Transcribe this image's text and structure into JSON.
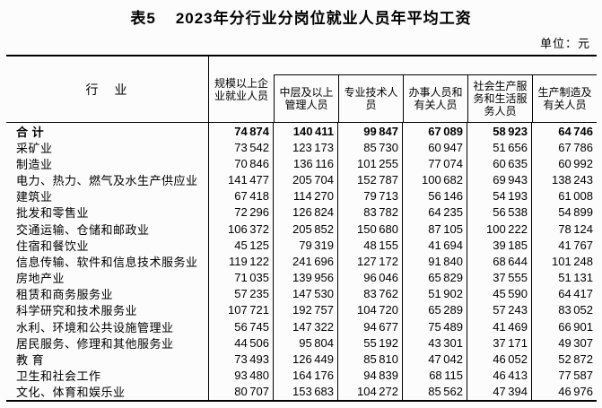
{
  "title": {
    "prefix": "表5",
    "text": "2023年分行业分岗位就业人员年平均工资"
  },
  "unit_label": "单位：元",
  "table": {
    "industry_header": "行　业",
    "columns": [
      "规模以上企业就业人员",
      "中层及以上管理人员",
      "专业技术人员",
      "办事人员和有关人员",
      "社会生产服务和生活服务人员",
      "生产制造及有关人员"
    ],
    "rows": [
      {
        "industry": "合 计",
        "bold": true,
        "values": [
          74874,
          140411,
          99847,
          67089,
          58923,
          64746
        ]
      },
      {
        "industry": "采矿业",
        "values": [
          73542,
          123173,
          85730,
          60947,
          51656,
          67786
        ]
      },
      {
        "industry": "制造业",
        "values": [
          70846,
          136116,
          101255,
          77074,
          60635,
          60992
        ]
      },
      {
        "industry": "电力、热力、燃气及水生产供应业",
        "values": [
          141477,
          205704,
          152787,
          100682,
          69943,
          138243
        ]
      },
      {
        "industry": "建筑业",
        "values": [
          67418,
          114270,
          79713,
          56146,
          54193,
          61008
        ]
      },
      {
        "industry": "批发和零售业",
        "values": [
          72296,
          126824,
          83782,
          64235,
          56538,
          54899
        ]
      },
      {
        "industry": "交通运输、仓储和邮政业",
        "values": [
          106372,
          205852,
          150680,
          87105,
          100222,
          78124
        ]
      },
      {
        "industry": "住宿和餐饮业",
        "values": [
          45125,
          79319,
          48155,
          41694,
          39185,
          41767
        ]
      },
      {
        "industry": "信息传输、软件和信息技术服务业",
        "values": [
          119122,
          241696,
          127172,
          91840,
          68644,
          101248
        ]
      },
      {
        "industry": "房地产业",
        "values": [
          71035,
          139956,
          96046,
          65829,
          37555,
          51131
        ]
      },
      {
        "industry": "租赁和商务服务业",
        "values": [
          57235,
          147530,
          83762,
          51902,
          45590,
          64417
        ]
      },
      {
        "industry": "科学研究和技术服务业",
        "values": [
          107721,
          192757,
          104720,
          65289,
          57243,
          83052
        ]
      },
      {
        "industry": "水利、环境和公共设施管理业",
        "values": [
          56745,
          147322,
          94677,
          75489,
          41469,
          66901
        ]
      },
      {
        "industry": "居民服务、修理和其他服务业",
        "values": [
          44506,
          95804,
          55192,
          43301,
          37171,
          49307
        ]
      },
      {
        "industry": "教 育",
        "values": [
          73493,
          126449,
          85810,
          47042,
          46052,
          52872
        ]
      },
      {
        "industry": "卫生和社会工作",
        "values": [
          93480,
          164176,
          94839,
          68115,
          46413,
          77587
        ]
      },
      {
        "industry": "文化、体育和娱乐业",
        "values": [
          80707,
          153683,
          104272,
          85562,
          47394,
          46976
        ]
      }
    ]
  },
  "chart_data": {
    "type": "table",
    "title": "表5 2023年分行业分岗位就业人员年平均工资",
    "unit": "元",
    "columns": [
      "行业",
      "规模以上企业就业人员",
      "中层及以上管理人员",
      "专业技术人员",
      "办事人员和有关人员",
      "社会生产服务和生活服务人员",
      "生产制造及有关人员"
    ],
    "rows": [
      [
        "合 计",
        74874,
        140411,
        99847,
        67089,
        58923,
        64746
      ],
      [
        "采矿业",
        73542,
        123173,
        85730,
        60947,
        51656,
        67786
      ],
      [
        "制造业",
        70846,
        136116,
        101255,
        77074,
        60635,
        60992
      ],
      [
        "电力、热力、燃气及水生产供应业",
        141477,
        205704,
        152787,
        100682,
        69943,
        138243
      ],
      [
        "建筑业",
        67418,
        114270,
        79713,
        56146,
        54193,
        61008
      ],
      [
        "批发和零售业",
        72296,
        126824,
        83782,
        64235,
        56538,
        54899
      ],
      [
        "交通运输、仓储和邮政业",
        106372,
        205852,
        150680,
        87105,
        100222,
        78124
      ],
      [
        "住宿和餐饮业",
        45125,
        79319,
        48155,
        41694,
        39185,
        41767
      ],
      [
        "信息传输、软件和信息技术服务业",
        119122,
        241696,
        127172,
        91840,
        68644,
        101248
      ],
      [
        "房地产业",
        71035,
        139956,
        96046,
        65829,
        37555,
        51131
      ],
      [
        "租赁和商务服务业",
        57235,
        147530,
        83762,
        51902,
        45590,
        64417
      ],
      [
        "科学研究和技术服务业",
        107721,
        192757,
        104720,
        65289,
        57243,
        83052
      ],
      [
        "水利、环境和公共设施管理业",
        56745,
        147322,
        94677,
        75489,
        41469,
        66901
      ],
      [
        "居民服务、修理和其他服务业",
        44506,
        95804,
        55192,
        43301,
        37171,
        49307
      ],
      [
        "教 育",
        73493,
        126449,
        85810,
        47042,
        46052,
        52872
      ],
      [
        "卫生和社会工作",
        93480,
        164176,
        94839,
        68115,
        46413,
        77587
      ],
      [
        "文化、体育和娱乐业",
        80707,
        153683,
        104272,
        85562,
        47394,
        46976
      ]
    ]
  }
}
